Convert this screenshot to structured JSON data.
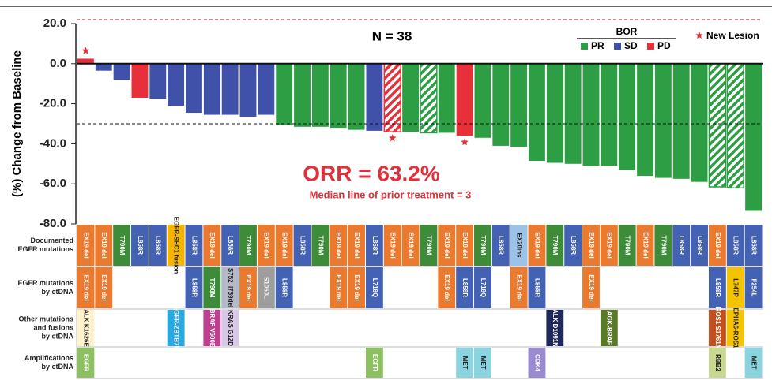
{
  "chart_data": {
    "type": "bar",
    "annotations": {
      "n": "N = 38",
      "orr": "ORR = 63.2%",
      "median": "Median line of prior treatment = 3"
    },
    "ylabel": "(%) Change from Baseline",
    "ylim": [
      -80,
      20
    ],
    "yticks": [
      {
        "value": 20,
        "label": "20.0"
      },
      {
        "value": 0,
        "label": "0.0"
      },
      {
        "value": -20,
        "label": "-20.0"
      },
      {
        "value": -40,
        "label": "-40.0"
      },
      {
        "value": -60,
        "label": "-60.0"
      },
      {
        "value": -80,
        "label": "-80.0"
      }
    ],
    "reference_lines": [
      {
        "value": 22,
        "color": "#e0303a"
      },
      {
        "value": -30,
        "color": "#111111"
      }
    ],
    "values": [
      2.5,
      -3.5,
      -8,
      -17,
      -17.5,
      -21,
      -24.5,
      -25.5,
      -25.5,
      -26.5,
      -25.5,
      -30.5,
      -31.5,
      -31.5,
      -32,
      -33,
      -33.5,
      -34,
      -34,
      -34.5,
      -34.5,
      -36,
      -37,
      -41,
      -41.5,
      -48.5,
      -49.5,
      -50,
      -51,
      -51,
      -53,
      -56,
      -57,
      -57.5,
      -59,
      -61.5,
      -62,
      -73.5
    ],
    "response": [
      "PD",
      "SD",
      "SD",
      "PD",
      "SD",
      "SD",
      "SD",
      "SD",
      "SD",
      "SD",
      "SD",
      "PR",
      "PR",
      "PR",
      "PR",
      "PR",
      "SD",
      "PD",
      "PR",
      "PR",
      "PR",
      "PD",
      "PR",
      "PR",
      "PR",
      "PR",
      "PR",
      "PR",
      "PR",
      "PR",
      "PR",
      "PR",
      "PR",
      "PR",
      "PR",
      "PR",
      "PR",
      "PR"
    ],
    "hatched": [
      false,
      false,
      false,
      false,
      false,
      false,
      false,
      false,
      false,
      false,
      false,
      false,
      false,
      false,
      false,
      false,
      false,
      true,
      false,
      true,
      false,
      false,
      false,
      false,
      false,
      false,
      false,
      false,
      false,
      false,
      false,
      false,
      false,
      false,
      false,
      true,
      true,
      false
    ],
    "new_lesion": [
      true,
      false,
      false,
      false,
      false,
      false,
      false,
      false,
      false,
      false,
      false,
      false,
      false,
      false,
      false,
      false,
      false,
      true,
      false,
      false,
      false,
      true,
      false,
      false,
      false,
      false,
      false,
      false,
      false,
      false,
      false,
      false,
      false,
      false,
      false,
      false,
      false,
      false
    ],
    "legend": {
      "title": "BOR",
      "items": [
        "PR",
        "SD",
        "PD"
      ],
      "new_lesion": "New Lesion"
    },
    "response_colors": {
      "PR": "#2e9e44",
      "SD": "#3f51a8",
      "PD": "#e8303a"
    },
    "star_color": "#e0303a",
    "label_colors": {
      "EX19 del": "#ec7a2e",
      "L858R": "#4462b4",
      "T790M": "#3e8b3a",
      "EGFR-SHC1 fusion": "#f4b400",
      "EX20ins": "#9cc3e6",
      "L747P": "#f4c400",
      "S752_I759del": "#b5b8c8",
      "S1050L": "#9e9e9e",
      "L718Q": "#4462b4",
      "F254L": "#4462b4",
      "ALK K1626E": "#fff2cc",
      "EGFR-ZBTB7B": "#2aa9e0",
      "BRAF V600E": "#c04090",
      "KRAS G12D": "#d8c8e8",
      "ALK D1091N": "#1f2a5a",
      "AGK-BRAF": "#5a7a2a",
      "ROS1 S1761N": "#c05020",
      "EPHA6-ROS1": "#f4c400",
      "EGFR": "#8cc060",
      "MET": "#8ad4e0",
      "CDK4": "#9a8ad0",
      "RBB2": "#c8d890"
    },
    "tracks": [
      {
        "label": [
          "Documented",
          "EGFR mutations"
        ],
        "cells": [
          "EX19 del",
          "EX19 del",
          "T790M",
          "L858R",
          "L858R",
          "EGFR-SHC1 fusion",
          "L858R",
          "EX19 del",
          "L858R",
          "T790M",
          "EX19 del",
          "EX19 del",
          "L858R",
          "T790M",
          "EX19 del",
          "EX19 del",
          "L858R",
          "EX19 del",
          "EX19 del",
          "T790M",
          "EX19 del",
          "EX19 del",
          "T790M",
          "L858R",
          "EX20ins",
          "EX19 del",
          "T790M",
          "L858R",
          "EX19 del",
          "EX19 del",
          "T790M",
          "EX19 del",
          "T790M",
          "L858R",
          "L858R",
          "EX19 del",
          "L858R",
          "L858R"
        ]
      },
      {
        "label": [
          "EGFR mutations",
          "by ctDNA"
        ],
        "cells": [
          "EX19 del",
          "EX19 del",
          null,
          null,
          null,
          null,
          "L858R",
          "T790M",
          "S752_I759del",
          "EX19 del",
          "S1050L",
          "L858R",
          null,
          null,
          "EX19 del",
          "EX19 del",
          "L718Q",
          null,
          null,
          null,
          "EX19 del",
          "L858R",
          "L718Q",
          null,
          "EX19 del",
          "L858R",
          null,
          null,
          "EX19 del",
          null,
          null,
          null,
          null,
          null,
          null,
          "L858R",
          "L747P",
          "F254L"
        ]
      },
      {
        "label": [
          "Other mutations",
          "and fusions",
          "by ctDNA"
        ],
        "cells": [
          "ALK K1626E",
          null,
          null,
          null,
          null,
          "EGFR-ZBTB7B",
          null,
          "BRAF V600E",
          "KRAS G12D",
          null,
          null,
          null,
          null,
          null,
          null,
          null,
          null,
          null,
          null,
          null,
          null,
          null,
          null,
          null,
          null,
          null,
          "ALK D1091N",
          null,
          null,
          "AGK-BRAF",
          null,
          null,
          null,
          null,
          null,
          "ROS1 S1761N",
          "EPHA6-ROS1",
          null
        ]
      },
      {
        "label": [
          "Amplifications",
          "by ctDNA"
        ],
        "cells": [
          "EGFR",
          null,
          null,
          null,
          null,
          null,
          null,
          null,
          null,
          null,
          null,
          null,
          null,
          null,
          null,
          null,
          "EGFR",
          null,
          null,
          null,
          null,
          "MET",
          "MET",
          null,
          null,
          "CDK4",
          null,
          null,
          null,
          null,
          null,
          null,
          null,
          null,
          null,
          "RBB2",
          null,
          "MET"
        ]
      }
    ]
  }
}
